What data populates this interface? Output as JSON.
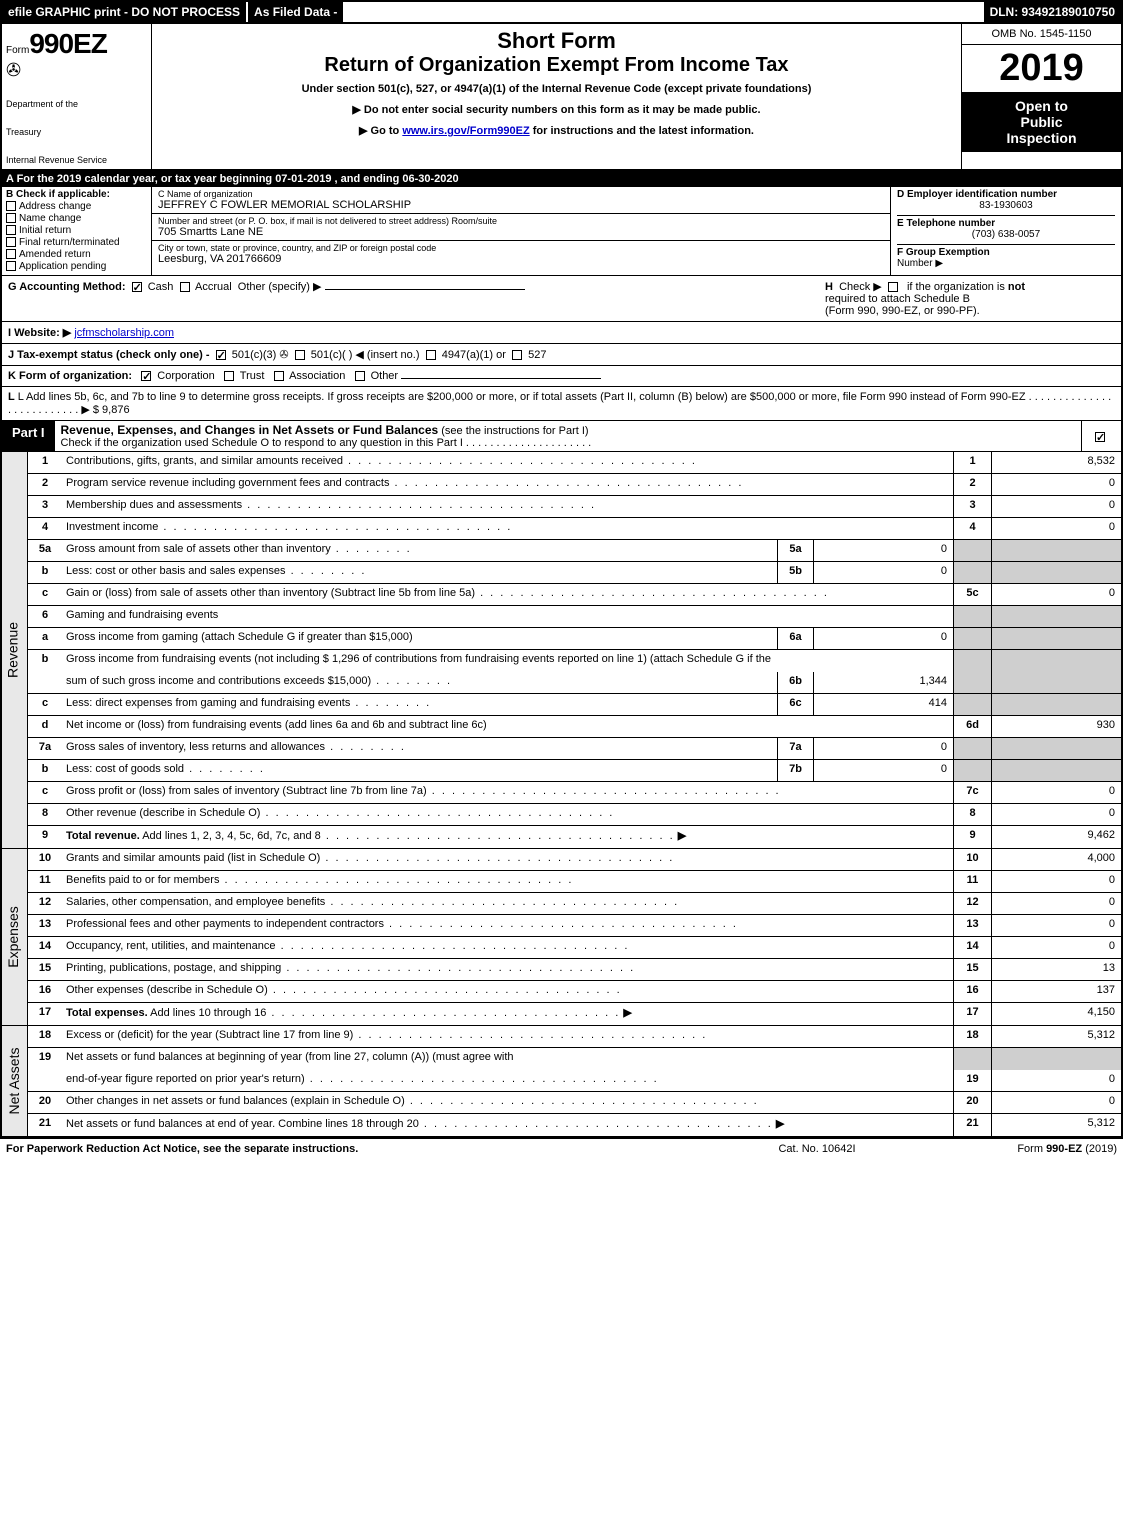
{
  "topbar": {
    "left": "efile GRAPHIC print - DO NOT PROCESS",
    "mid": "As Filed Data -",
    "right": "DLN: 93492189010750"
  },
  "header": {
    "form_prefix": "Form",
    "form_number": "990EZ",
    "short_form": "Short Form",
    "title": "Return of Organization Exempt From Income Tax",
    "under_section": "Under section 501(c), 527, or 4947(a)(1) of the Internal Revenue Code (except private foundations)",
    "no_ssn": "▶ Do not enter social security numbers on this form as it may be made public.",
    "goto": "▶ Go to www.irs.gov/Form990EZ for instructions and the latest information.",
    "dept1": "Department of the",
    "dept2": "Treasury",
    "dept3": "Internal Revenue Service",
    "omb": "OMB No. 1545-1150",
    "year": "2019",
    "open1": "Open to",
    "open2": "Public",
    "open3": "Inspection"
  },
  "row_a": "A  For the 2019 calendar year, or tax year beginning 07-01-2019 , and ending 06-30-2020",
  "section_b": {
    "header": "B  Check if applicable:",
    "items": [
      "Address change",
      "Name change",
      "Initial return",
      "Final return/terminated",
      "Amended return",
      "Application pending"
    ]
  },
  "section_c": {
    "label": "C Name of organization",
    "name": "JEFFREY C FOWLER MEMORIAL SCHOLARSHIP",
    "addr_label": "Number and street (or P. O. box, if mail is not delivered to street address)   Room/suite",
    "addr": "705 Smartts Lane NE",
    "city_label": "City or town, state or province, country, and ZIP or foreign postal code",
    "city": "Leesburg, VA  201766609"
  },
  "section_d": {
    "label": "D Employer identification number",
    "ein": "83-1930603",
    "e_label": "E Telephone number",
    "phone": "(703) 638-0057",
    "f_label": "F Group Exemption",
    "f_label2": "Number   ▶"
  },
  "line_g": {
    "label": "G Accounting Method:",
    "cash": "Cash",
    "accrual": "Accrual",
    "other": "Other (specify) ▶"
  },
  "line_h": {
    "label": "H  Check ▶     if the organization is not",
    "l2": "required to attach Schedule B",
    "l3": "(Form 990, 990-EZ, or 990-PF)."
  },
  "line_i": {
    "label": "I Website: ▶",
    "val": "jcfmscholarship.com"
  },
  "line_j": {
    "label": "J Tax-exempt status (check only one) -",
    "opt1": "501(c)(3)",
    "opt2": "501(c)(   ) ◀ (insert no.)",
    "opt3": "4947(a)(1) or",
    "opt4": "527"
  },
  "line_k": {
    "label": "K Form of organization:",
    "corp": "Corporation",
    "trust": "Trust",
    "assoc": "Association",
    "other": "Other"
  },
  "line_l": {
    "text": "L Add lines 5b, 6c, and 7b to line 9 to determine gross receipts. If gross receipts are $200,000 or more, or if total assets (Part II, column (B) below) are $500,000 or more, file Form 990 instead of Form 990-EZ",
    "dots": " .  .  .  .  .  .  .  .  .  .  .  .  .  .  .  .  .  .  .  .  .  .  .  .  .  . ▶",
    "val": "$ 9,876"
  },
  "part1": {
    "tag": "Part I",
    "title_bold": "Revenue, Expenses, and Changes in Net Assets or Fund Balances",
    "title_rest": " (see the instructions for Part I)",
    "check_text": "Check if the organization used Schedule O to respond to any question in this Part I",
    "check_dots": " .  .  .  .  .  .  .  .  .  .  .  .  .  .  .  .  .  .  .  .  ."
  },
  "revenue_label": "Revenue",
  "expenses_label": "Expenses",
  "netassets_label": "Net Assets",
  "lines": {
    "l1": {
      "n": "1",
      "d": "Contributions, gifts, grants, and similar amounts received",
      "box": "1",
      "val": "8,532"
    },
    "l2": {
      "n": "2",
      "d": "Program service revenue including government fees and contracts",
      "box": "2",
      "val": "0"
    },
    "l3": {
      "n": "3",
      "d": "Membership dues and assessments",
      "box": "3",
      "val": "0"
    },
    "l4": {
      "n": "4",
      "d": "Investment income",
      "box": "4",
      "val": "0"
    },
    "l5a": {
      "n": "5a",
      "d": "Gross amount from sale of assets other than inventory",
      "ibox": "5a",
      "ival": "0"
    },
    "l5b": {
      "n": "b",
      "d": "Less: cost or other basis and sales expenses",
      "ibox": "5b",
      "ival": "0"
    },
    "l5c": {
      "n": "c",
      "d": "Gain or (loss) from sale of assets other than inventory (Subtract line 5b from line 5a)",
      "box": "5c",
      "val": "0"
    },
    "l6": {
      "n": "6",
      "d": "Gaming and fundraising events"
    },
    "l6a": {
      "n": "a",
      "d": "Gross income from gaming (attach Schedule G if greater than $15,000)",
      "ibox": "6a",
      "ival": "0"
    },
    "l6b": {
      "n": "b",
      "d": "Gross income from fundraising events (not including $  1,296            of contributions from fundraising events reported on line 1) (attach Schedule G if the",
      "d2": "sum of such gross income and contributions exceeds $15,000)",
      "ibox": "6b",
      "ival": "1,344"
    },
    "l6c": {
      "n": "c",
      "d": "Less: direct expenses from gaming and fundraising events",
      "ibox": "6c",
      "ival": "414"
    },
    "l6d": {
      "n": "d",
      "d": "Net income or (loss) from fundraising events (add lines 6a and 6b and subtract line 6c)",
      "box": "6d",
      "val": "930"
    },
    "l7a": {
      "n": "7a",
      "d": "Gross sales of inventory, less returns and allowances",
      "ibox": "7a",
      "ival": "0"
    },
    "l7b": {
      "n": "b",
      "d": "Less: cost of goods sold",
      "ibox": "7b",
      "ival": "0"
    },
    "l7c": {
      "n": "c",
      "d": "Gross profit or (loss) from sales of inventory (Subtract line 7b from line 7a)",
      "box": "7c",
      "val": "0"
    },
    "l8": {
      "n": "8",
      "d": "Other revenue (describe in Schedule O)",
      "box": "8",
      "val": "0"
    },
    "l9": {
      "n": "9",
      "d": "Total revenue. Add lines 1, 2, 3, 4, 5c, 6d, 7c, and 8",
      "box": "9",
      "val": "9,462"
    },
    "l10": {
      "n": "10",
      "d": "Grants and similar amounts paid (list in Schedule O)",
      "box": "10",
      "val": "4,000"
    },
    "l11": {
      "n": "11",
      "d": "Benefits paid to or for members",
      "box": "11",
      "val": "0"
    },
    "l12": {
      "n": "12",
      "d": "Salaries, other compensation, and employee benefits",
      "box": "12",
      "val": "0"
    },
    "l13": {
      "n": "13",
      "d": "Professional fees and other payments to independent contractors",
      "box": "13",
      "val": "0"
    },
    "l14": {
      "n": "14",
      "d": "Occupancy, rent, utilities, and maintenance",
      "box": "14",
      "val": "0"
    },
    "l15": {
      "n": "15",
      "d": "Printing, publications, postage, and shipping",
      "box": "15",
      "val": "13"
    },
    "l16": {
      "n": "16",
      "d": "Other expenses (describe in Schedule O)",
      "box": "16",
      "val": "137"
    },
    "l17": {
      "n": "17",
      "d": "Total expenses. Add lines 10 through 16",
      "box": "17",
      "val": "4,150"
    },
    "l18": {
      "n": "18",
      "d": "Excess or (deficit) for the year (Subtract line 17 from line 9)",
      "box": "18",
      "val": "5,312"
    },
    "l19": {
      "n": "19",
      "d": "Net assets or fund balances at beginning of year (from line 27, column (A)) (must agree with",
      "d2": "end-of-year figure reported on prior year's return)",
      "box": "19",
      "val": "0"
    },
    "l20": {
      "n": "20",
      "d": "Other changes in net assets or fund balances (explain in Schedule O)",
      "box": "20",
      "val": "0"
    },
    "l21": {
      "n": "21",
      "d": "Net assets or fund balances at end of year. Combine lines 18 through 20",
      "box": "21",
      "val": "5,312"
    }
  },
  "footer": {
    "left": "For Paperwork Reduction Act Notice, see the separate instructions.",
    "mid": "Cat. No. 10642I",
    "right": "Form 990-EZ (2019)"
  },
  "colors": {
    "black": "#000000",
    "white": "#ffffff",
    "shade": "#cfcfcf",
    "vert_bg": "#e8e8e8",
    "link": "#0000cc"
  }
}
